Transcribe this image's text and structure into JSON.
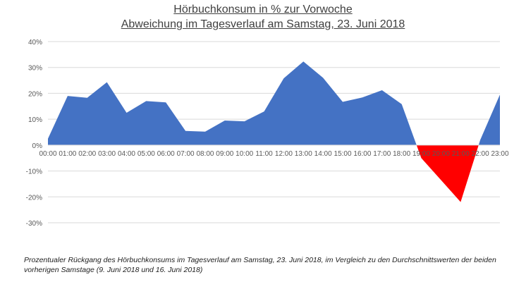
{
  "chart_data": {
    "type": "area",
    "title": "Hörbuchkonsum in % zur Vorwoche",
    "subtitle": "Abweichung im Tagesverlauf am Samstag, 23. Juni 2018",
    "xlabel": "",
    "ylabel": "",
    "ylim": [
      -30,
      40
    ],
    "yticks": [
      "40%",
      "30%",
      "20%",
      "10%",
      "0%",
      "-10%",
      "-20%",
      "-30%"
    ],
    "ytick_values": [
      40,
      30,
      20,
      10,
      0,
      -10,
      -20,
      -30
    ],
    "categories": [
      "00:00",
      "01:00",
      "02:00",
      "03:00",
      "04:00",
      "05:00",
      "06:00",
      "07:00",
      "08:00",
      "09:00",
      "10:00",
      "11:00",
      "12:00",
      "13:00",
      "14:00",
      "15:00",
      "16:00",
      "17:00",
      "18:00",
      "19:00",
      "20:00",
      "21:00",
      "22:00",
      "23:00"
    ],
    "values": [
      2.5,
      19,
      18.3,
      24.3,
      12.5,
      17,
      16.5,
      5.5,
      5.2,
      9.5,
      9.2,
      13,
      25.8,
      32.3,
      26,
      16.7,
      18.4,
      21.2,
      15.8,
      -5,
      -13.5,
      -22,
      2,
      19.5
    ],
    "colors": {
      "positive": "#4472C4",
      "negative": "#FF0000",
      "grid": "#D9D9D9",
      "axis": "#595959"
    },
    "grid": true,
    "legend": "none"
  },
  "caption": "Prozentualer Rückgang des Hörbuchkonsums im Tagesverlauf am Samstag, 23. Juni 2018, im Vergleich zu den Durchschnittswerten der beiden vorherigen Samstage (9. Juni 2018 und 16. Juni 2018)"
}
